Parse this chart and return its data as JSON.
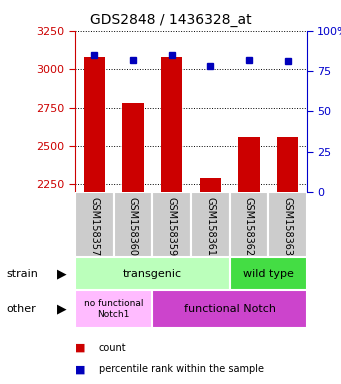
{
  "title": "GDS2848 / 1436328_at",
  "samples": [
    "GSM158357",
    "GSM158360",
    "GSM158359",
    "GSM158361",
    "GSM158362",
    "GSM158363"
  ],
  "counts": [
    3080,
    2780,
    3080,
    2290,
    2560,
    2560
  ],
  "percentile_vals": [
    85,
    82,
    85,
    78,
    82,
    81
  ],
  "ylim_left": [
    2200,
    3250
  ],
  "ylim_right": [
    0,
    100
  ],
  "yticks_left": [
    2250,
    2500,
    2750,
    3000,
    3250
  ],
  "yticks_right": [
    0,
    25,
    50,
    75,
    100
  ],
  "left_color": "#cc0000",
  "right_color": "#0000cc",
  "bar_color": "#cc0000",
  "dot_color": "#0000bb",
  "bar_width": 0.55,
  "transgenic_color": "#bbffbb",
  "wildtype_color": "#44dd44",
  "nofunc_color": "#ffbbff",
  "func_color": "#cc44cc",
  "sample_box_color": "#cccccc",
  "annotation_strain": "strain",
  "annotation_other": "other",
  "legend_count": "count",
  "legend_percentile": "percentile rank within the sample",
  "title_fontsize": 10,
  "axis_fontsize": 8,
  "tick_fontsize": 8,
  "label_fontsize": 8
}
